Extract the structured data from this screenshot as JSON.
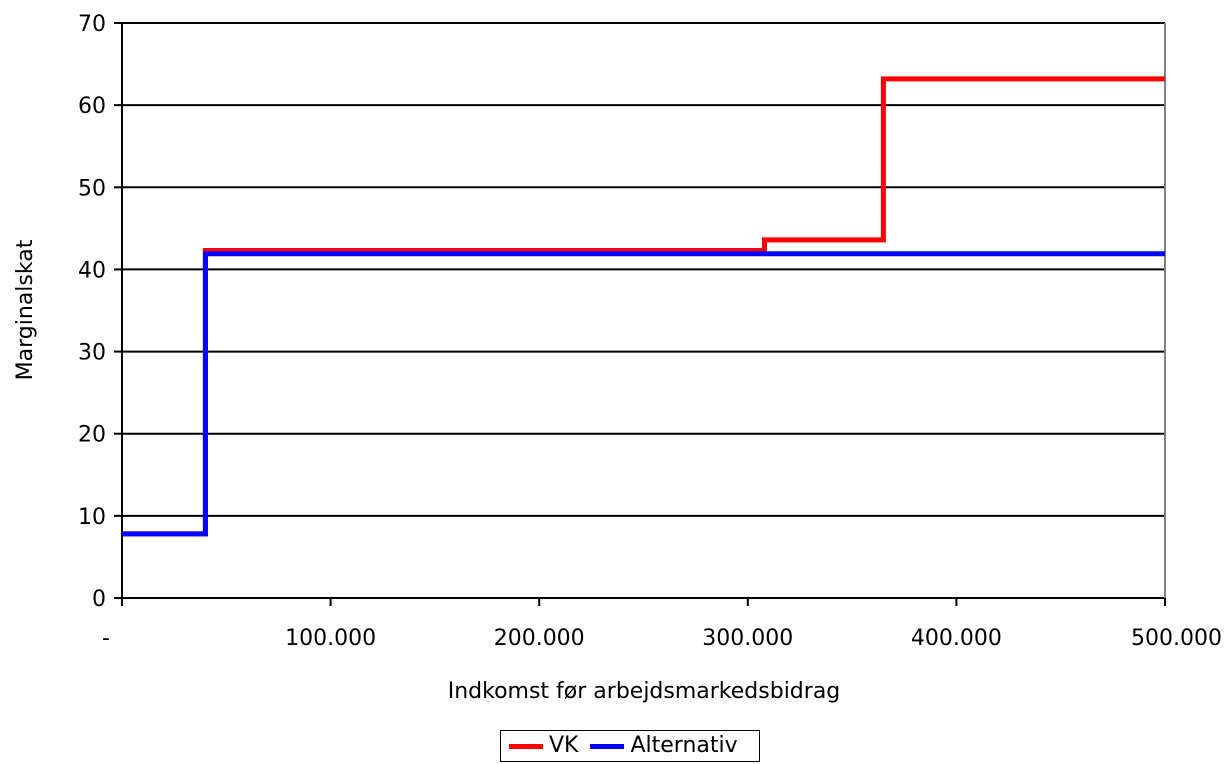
{
  "chart_data": {
    "type": "line",
    "title": "",
    "xlabel": "Indkomst før arbejdsmarkedsbidrag",
    "ylabel": "Marginalskat",
    "xlim": [
      0,
      500000
    ],
    "ylim": [
      0,
      70
    ],
    "x_tick_values": [
      0,
      100000,
      200000,
      300000,
      400000,
      500000
    ],
    "x_tick_labels": [
      "-",
      "100.000",
      "200.000",
      "300.000",
      "400.000",
      "500.000"
    ],
    "y_tick_values": [
      0,
      10,
      20,
      30,
      40,
      50,
      60,
      70
    ],
    "y_tick_labels": [
      "0",
      "10",
      "20",
      "30",
      "40",
      "50",
      "60",
      "70"
    ],
    "grid": "horizontal",
    "legend_position": "bottom",
    "series": [
      {
        "name": "VK",
        "color": "#ff0000",
        "points": [
          [
            0,
            7.8
          ],
          [
            40000,
            7.8
          ],
          [
            40000,
            42.3
          ],
          [
            308000,
            42.3
          ],
          [
            308000,
            43.6
          ],
          [
            365000,
            43.6
          ],
          [
            365000,
            63.2
          ],
          [
            500000,
            63.2
          ]
        ]
      },
      {
        "name": "Alternativ",
        "color": "#0000ff",
        "points": [
          [
            0,
            7.8
          ],
          [
            40000,
            7.8
          ],
          [
            40000,
            41.9
          ],
          [
            500000,
            41.9
          ]
        ]
      }
    ]
  }
}
